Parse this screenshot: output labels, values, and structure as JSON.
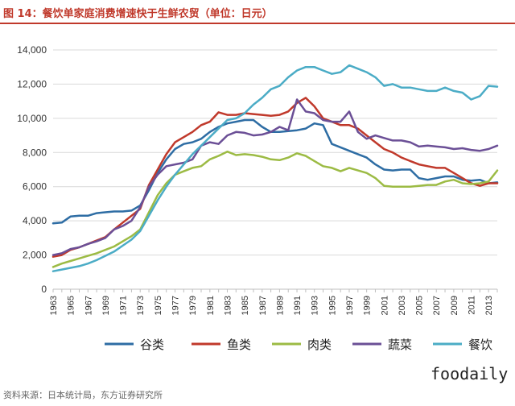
{
  "title": "图 14：餐饮单家庭消费增速快于生鲜农贸（单位：日元）",
  "source": "资料来源：日本统计局，东方证券研究所",
  "watermark": "foodaily",
  "chart_data": {
    "type": "line",
    "title": "图 14：餐饮单家庭消费增速快于生鲜农贸（单位：日元）",
    "xlabel": "",
    "ylabel": "",
    "ylim": [
      0,
      14000
    ],
    "yticks": [
      0,
      2000,
      4000,
      6000,
      8000,
      10000,
      12000,
      14000
    ],
    "ytick_labels": [
      "0",
      "2,000",
      "4,000",
      "6,000",
      "8,000",
      "10,000",
      "12,000",
      "14,000"
    ],
    "x": [
      1963,
      1964,
      1965,
      1966,
      1967,
      1968,
      1969,
      1970,
      1971,
      1972,
      1973,
      1974,
      1975,
      1976,
      1977,
      1978,
      1979,
      1980,
      1981,
      1982,
      1983,
      1984,
      1985,
      1986,
      1987,
      1988,
      1989,
      1990,
      1991,
      1992,
      1993,
      1994,
      1995,
      1996,
      1997,
      1998,
      1999,
      2000,
      2001,
      2002,
      2003,
      2004,
      2005,
      2006,
      2007,
      2008,
      2009,
      2010,
      2011,
      2012,
      2013,
      2014
    ],
    "xticks": [
      "1963",
      "1965",
      "1967",
      "1969",
      "1971",
      "1973",
      "1975",
      "1977",
      "1979",
      "1981",
      "1983",
      "1985",
      "1987",
      "1989",
      "1991",
      "1993",
      "1995",
      "1997",
      "1999",
      "2001",
      "2003",
      "2005",
      "2007",
      "2009",
      "2011",
      "2013"
    ],
    "grid": true,
    "legend": "bottom",
    "series": [
      {
        "name": "谷类",
        "color": "#2e6da4",
        "values": [
          3850,
          3900,
          4250,
          4300,
          4300,
          4450,
          4500,
          4550,
          4550,
          4600,
          4900,
          5800,
          6800,
          7600,
          8200,
          8500,
          8600,
          8800,
          9200,
          9500,
          9700,
          9800,
          9900,
          9900,
          9500,
          9200,
          9200,
          9250,
          9300,
          9400,
          9700,
          9600,
          8500,
          8300,
          8100,
          7900,
          7700,
          7300,
          7000,
          6950,
          7000,
          7000,
          6500,
          6400,
          6500,
          6600,
          6600,
          6400,
          6350,
          6400,
          6200,
          6250
        ]
      },
      {
        "name": "鱼类",
        "color": "#c0392b",
        "values": [
          1900,
          2000,
          2300,
          2450,
          2650,
          2850,
          3050,
          3500,
          3900,
          4300,
          4700,
          6100,
          7000,
          7900,
          8600,
          8900,
          9200,
          9600,
          9800,
          10350,
          10200,
          10200,
          10300,
          10250,
          10200,
          10150,
          10200,
          10400,
          10900,
          11200,
          10700,
          10000,
          9800,
          9600,
          9600,
          9400,
          9000,
          8600,
          8200,
          8000,
          7700,
          7500,
          7300,
          7200,
          7100,
          7100,
          6800,
          6500,
          6200,
          6050,
          6200,
          6200
        ]
      },
      {
        "name": "肉类",
        "color": "#9cbb44",
        "values": [
          1300,
          1500,
          1650,
          1800,
          1950,
          2100,
          2300,
          2500,
          2800,
          3100,
          3500,
          4500,
          5500,
          6200,
          6700,
          6900,
          7100,
          7200,
          7600,
          7800,
          8050,
          7850,
          7900,
          7850,
          7750,
          7600,
          7550,
          7700,
          7950,
          7800,
          7500,
          7200,
          7100,
          6900,
          7100,
          6950,
          6800,
          6500,
          6050,
          6000,
          6000,
          6000,
          6050,
          6100,
          6100,
          6300,
          6400,
          6200,
          6150,
          6200,
          6300,
          6950
        ]
      },
      {
        "name": "蔬菜",
        "color": "#6b4f96",
        "values": [
          2000,
          2100,
          2350,
          2450,
          2650,
          2800,
          3000,
          3500,
          3700,
          4000,
          4800,
          6000,
          6700,
          7200,
          7300,
          7400,
          7600,
          8400,
          8600,
          8500,
          9000,
          9200,
          9150,
          9000,
          9050,
          9200,
          9500,
          9300,
          11100,
          10400,
          10300,
          9900,
          9800,
          9800,
          10400,
          9200,
          8800,
          9000,
          8850,
          8700,
          8700,
          8600,
          8350,
          8400,
          8350,
          8300,
          8200,
          8250,
          8150,
          8100,
          8200,
          8400
        ]
      },
      {
        "name": "餐饮",
        "color": "#4bacc6",
        "values": [
          1050,
          1150,
          1250,
          1350,
          1500,
          1700,
          1950,
          2200,
          2550,
          2900,
          3400,
          4300,
          5200,
          6000,
          6700,
          7300,
          7900,
          8400,
          8900,
          9400,
          9900,
          10000,
          10300,
          10800,
          11200,
          11700,
          11900,
          12400,
          12800,
          13000,
          13000,
          12800,
          12600,
          12700,
          13100,
          12900,
          12700,
          12400,
          11900,
          12000,
          11800,
          11800,
          11700,
          11600,
          11600,
          11800,
          11600,
          11500,
          11100,
          11300,
          11900,
          11850
        ]
      }
    ]
  }
}
